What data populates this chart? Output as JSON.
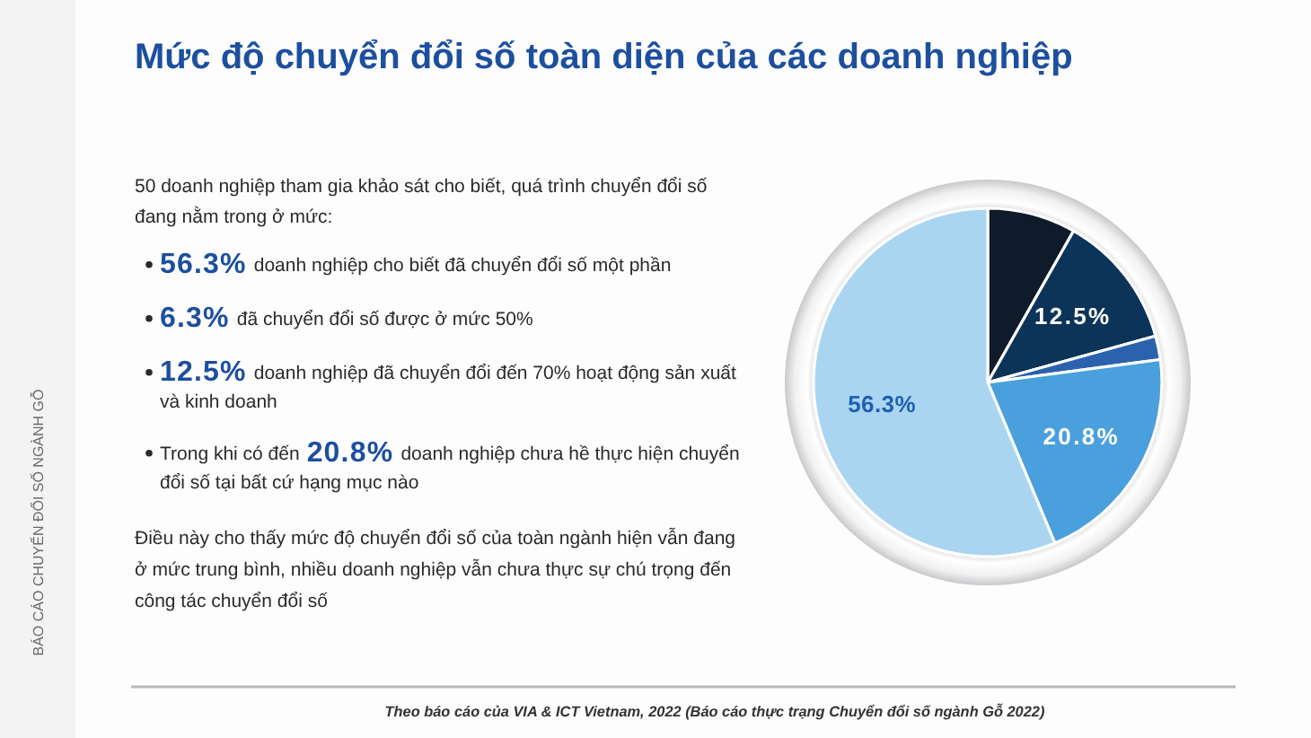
{
  "chart_data": {
    "type": "pie",
    "title": "Mức độ chuyển đổi số toàn diện của các doanh nghiệp",
    "categories": [
      null,
      null,
      null,
      null,
      null
    ],
    "values": [
      8.2,
      12.5,
      2.2,
      20.8,
      56.3
    ],
    "colors": [
      "#0f1b2a",
      "#0c3358",
      "#2b62ad",
      "#4aa0dc",
      "#aad5f1"
    ],
    "value_labels": [
      null,
      "12.5%",
      null,
      "20.8%",
      "56.3%"
    ],
    "annotations": [
      "50 doanh nghiệp tham gia khảo sát cho biết, quá trình chuyển đổi số đang nằm trong ở mức:",
      "56.3%",
      "doanh nghiệp cho biết đã chuyển đổi số một phần",
      "6.3%",
      "đã chuyển đổi số được ở mức 50%",
      "12.5%",
      "doanh nghiệp đã chuyển đổi đến 70% hoạt động sản xuất",
      "và kinh doanh",
      "Trong khi có đến",
      "20.8%",
      "doanh nghiệp chưa hề thực hiện chuyển",
      "đổi số tại bất cứ hạng mục nào",
      "Điều này cho thấy mức độ chuyển đổi số của toàn ngành hiện vẫn đang ở mức trung bình, nhiều doanh nghiệp vẫn chưa thực sự chú trọng đến công tác chuyển đổi số",
      "Theo báo cáo của VIA & ICT Vietnam, 2022 (Báo cáo thực trạng Chuyển đổi số ngành Gỗ 2022)",
      "BÁO CÁO CHUYỂN ĐỔI SỐ NGÀNH GỖ"
    ]
  }
}
